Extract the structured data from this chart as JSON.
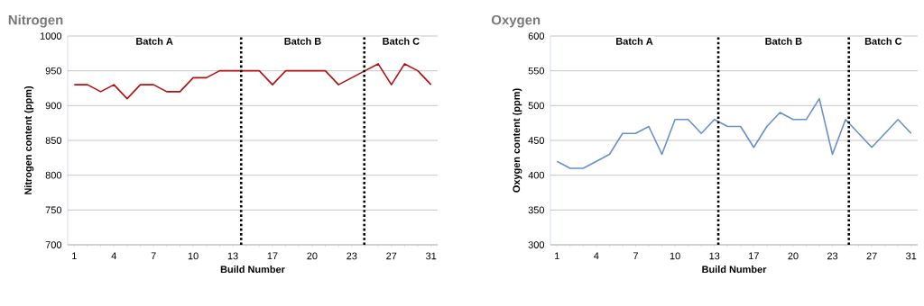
{
  "chart_data": [
    {
      "type": "line",
      "title": "Nitrogen",
      "xlabel": "Build Number",
      "ylabel": "Nitrogen content (ppm)",
      "categories": [
        "1",
        null,
        null,
        "4",
        null,
        null,
        "7",
        null,
        null,
        "10",
        null,
        null,
        "13",
        null,
        null,
        "17",
        null,
        null,
        "20",
        null,
        null,
        "23",
        null,
        null,
        "27",
        null,
        null,
        "31"
      ],
      "series": [
        {
          "color": "#b01010",
          "values": [
            930,
            930,
            920,
            930,
            910,
            930,
            930,
            920,
            920,
            940,
            940,
            950,
            950,
            950,
            950,
            930,
            950,
            950,
            950,
            950,
            930,
            940,
            950,
            960,
            930,
            960,
            950,
            930
          ]
        }
      ],
      "ylim": [
        700,
        1000
      ],
      "yticks": [
        700,
        750,
        800,
        850,
        900,
        950,
        1000
      ],
      "grid": "y",
      "marker": "none",
      "line_style": "solid",
      "annotations": [
        "Batch A",
        "Batch B",
        "Batch C"
      ]
    },
    {
      "type": "line",
      "title": "Oxygen",
      "xlabel": "Build Number",
      "ylabel": "Oxygen content (ppm)",
      "categories": [
        "1",
        null,
        null,
        "4",
        null,
        null,
        "7",
        null,
        null,
        "10",
        null,
        null,
        "13",
        null,
        null,
        "17",
        null,
        null,
        "20",
        null,
        null,
        "23",
        null,
        null,
        "27",
        null,
        null,
        "31"
      ],
      "series": [
        {
          "color": "#6a8fcc",
          "values": [
            420,
            410,
            410,
            420,
            430,
            460,
            460,
            470,
            430,
            480,
            480,
            460,
            480,
            470,
            470,
            440,
            470,
            490,
            480,
            480,
            510,
            430,
            480,
            460,
            440,
            460,
            480,
            460
          ]
        }
      ],
      "ylim": [
        300,
        600
      ],
      "yticks": [
        300,
        350,
        400,
        450,
        500,
        550,
        600
      ],
      "grid": "y",
      "marker": "none",
      "line_style": "solid",
      "annotations": [
        "Batch A",
        "Batch B",
        "Batch C"
      ]
    }
  ]
}
